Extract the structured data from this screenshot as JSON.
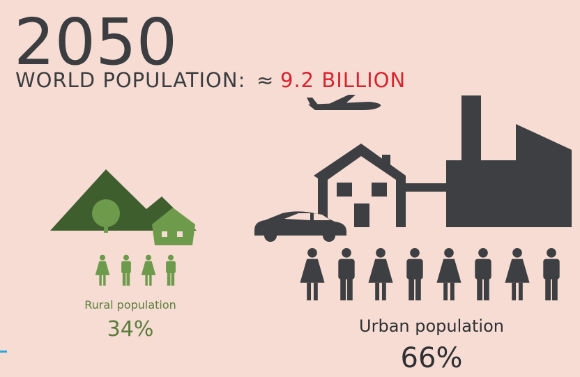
{
  "header": {
    "year": "2050",
    "label": "WORLD POPULATION:",
    "approx": "≈",
    "value": "9.2 BILLION"
  },
  "rural": {
    "label": "Rural population",
    "share": "34%"
  },
  "urban": {
    "label": "Urban population",
    "share": "66%"
  }
}
